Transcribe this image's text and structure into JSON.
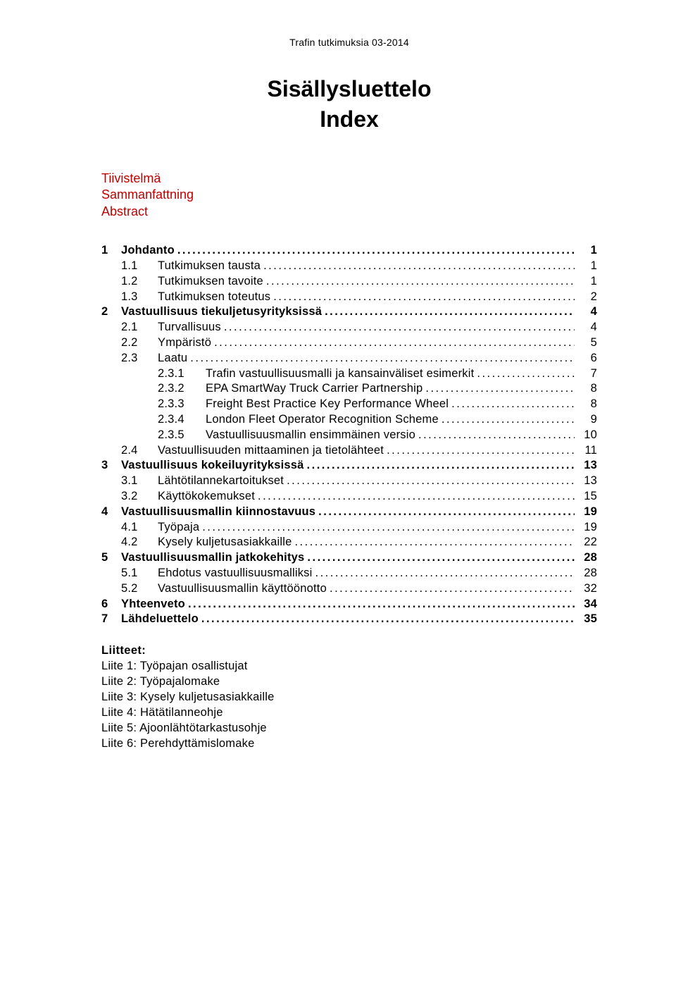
{
  "running_header": "Trafin tutkimuksia 03-2014",
  "title_main": "Sisällysluettelo",
  "title_sub": "Index",
  "front_matter": [
    "Tiivistelmä",
    "Sammanfattning",
    "Abstract"
  ],
  "toc": [
    {
      "lvl": 1,
      "num": "1",
      "label": "Johdanto",
      "page": "1"
    },
    {
      "lvl": 2,
      "num": "1.1",
      "label": "Tutkimuksen tausta",
      "page": "1"
    },
    {
      "lvl": 2,
      "num": "1.2",
      "label": "Tutkimuksen tavoite",
      "page": "1"
    },
    {
      "lvl": 2,
      "num": "1.3",
      "label": "Tutkimuksen toteutus",
      "page": "2"
    },
    {
      "lvl": 1,
      "num": "2",
      "label": "Vastuullisuus tiekuljetusyrityksissä",
      "page": "4"
    },
    {
      "lvl": 2,
      "num": "2.1",
      "label": "Turvallisuus",
      "page": "4"
    },
    {
      "lvl": 2,
      "num": "2.2",
      "label": "Ympäristö",
      "page": "5"
    },
    {
      "lvl": 2,
      "num": "2.3",
      "label": "Laatu",
      "page": "6"
    },
    {
      "lvl": 3,
      "num": "2.3.1",
      "label": "Trafin vastuullisuusmalli ja kansainväliset esimerkit",
      "page": "7"
    },
    {
      "lvl": 3,
      "num": "2.3.2",
      "label": "EPA SmartWay Truck Carrier Partnership",
      "page": "8"
    },
    {
      "lvl": 3,
      "num": "2.3.3",
      "label": "Freight Best Practice Key Performance Wheel",
      "page": "8"
    },
    {
      "lvl": 3,
      "num": "2.3.4",
      "label": "London Fleet Operator Recognition Scheme",
      "page": "9"
    },
    {
      "lvl": 3,
      "num": "2.3.5",
      "label": "Vastuullisuusmallin ensimmäinen versio",
      "page": "10"
    },
    {
      "lvl": 2,
      "num": "2.4",
      "label": "Vastuullisuuden mittaaminen ja tietolähteet",
      "page": "11"
    },
    {
      "lvl": 1,
      "num": "3",
      "label": "Vastuullisuus kokeiluyrityksissä",
      "page": "13"
    },
    {
      "lvl": 2,
      "num": "3.1",
      "label": "Lähtötilannekartoitukset",
      "page": "13"
    },
    {
      "lvl": 2,
      "num": "3.2",
      "label": "Käyttökokemukset",
      "page": "15"
    },
    {
      "lvl": 1,
      "num": "4",
      "label": "Vastuullisuusmallin kiinnostavuus",
      "page": "19"
    },
    {
      "lvl": 2,
      "num": "4.1",
      "label": "Työpaja",
      "page": "19"
    },
    {
      "lvl": 2,
      "num": "4.2",
      "label": "Kysely kuljetusasiakkaille",
      "page": "22"
    },
    {
      "lvl": 1,
      "num": "5",
      "label": "Vastuullisuusmallin jatkokehitys",
      "page": "28"
    },
    {
      "lvl": 2,
      "num": "5.1",
      "label": "Ehdotus vastuullisuusmalliksi",
      "page": "28"
    },
    {
      "lvl": 2,
      "num": "5.2",
      "label": "Vastuullisuusmallin käyttöönotto",
      "page": "32"
    },
    {
      "lvl": 1,
      "num": "6",
      "label": "Yhteenveto",
      "page": "34"
    },
    {
      "lvl": 1,
      "num": "7",
      "label": "Lähdeluettelo",
      "page": "35"
    }
  ],
  "appendix_heading": "Liitteet:",
  "appendices": [
    "Liite 1: Työpajan osallistujat",
    "Liite 2: Työpajalomake",
    "Liite 3: Kysely kuljetusasiakkaille",
    "Liite 4: Hätätilanneohje",
    "Liite 5: Ajoonlähtötarkastusohje",
    "Liite 6: Perehdyttämislomake"
  ]
}
